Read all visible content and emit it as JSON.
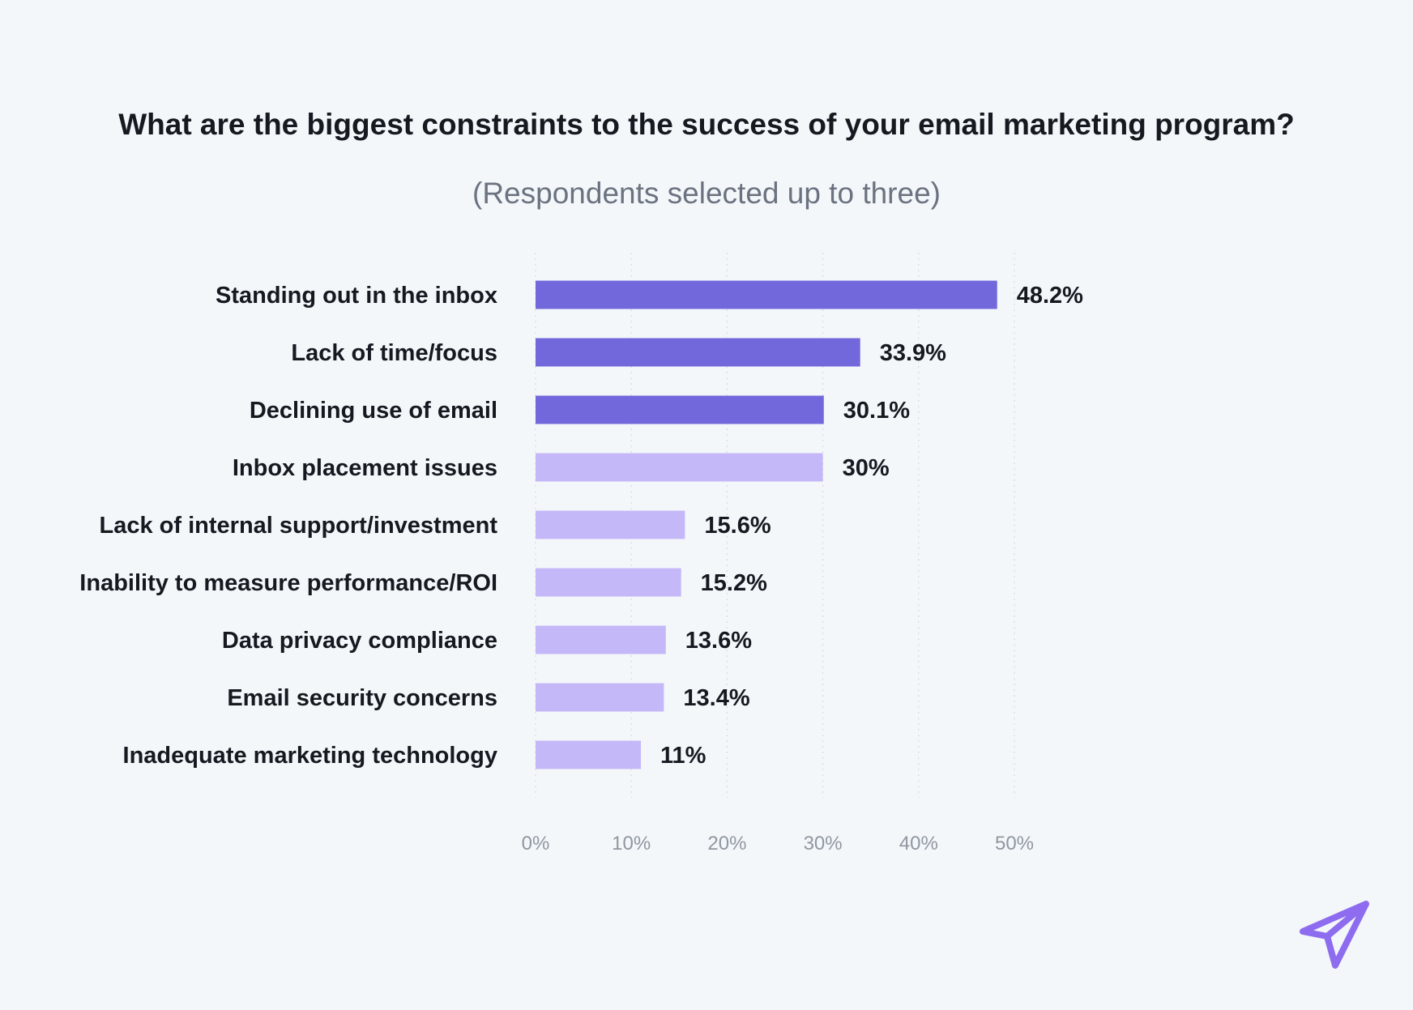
{
  "colors": {
    "highlight": "#7268dc",
    "normal": "#c4b8f8",
    "grid": "#d5dae0",
    "background": "#f4f7fa",
    "logo": "#8e6cf0"
  },
  "logo": {
    "icon": "paper-plane-icon"
  },
  "chart_data": {
    "type": "bar",
    "orientation": "horizontal",
    "title": "What are the biggest constraints to the success of your email marketing program?",
    "subtitle": "(Respondents selected up to three)",
    "categories": [
      "Standing out in the inbox",
      "Lack of time/focus",
      "Declining use of email",
      "Inbox placement issues",
      "Lack of internal support/investment",
      "Inability to measure performance/ROI",
      "Data privacy compliance",
      "Email security concerns",
      "Inadequate marketing technology"
    ],
    "values": [
      48.2,
      33.9,
      30.1,
      30,
      15.6,
      15.2,
      13.6,
      13.4,
      11
    ],
    "value_labels": [
      "48.2%",
      "33.9%",
      "30.1%",
      "30%",
      "15.6%",
      "15.2%",
      "13.6%",
      "13.4%",
      "11%"
    ],
    "highlighted": [
      true,
      true,
      true,
      false,
      false,
      false,
      false,
      false,
      false
    ],
    "xlim": [
      0,
      50
    ],
    "xticks": [
      0,
      10,
      20,
      30,
      40,
      50
    ],
    "xtick_labels": [
      "0%",
      "10%",
      "20%",
      "30%",
      "40%",
      "50%"
    ],
    "xlabel": "",
    "ylabel": "",
    "grid": "vertical-dotted"
  }
}
